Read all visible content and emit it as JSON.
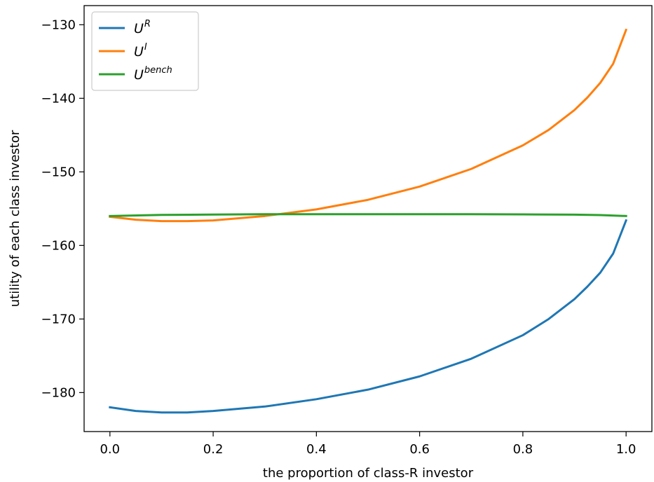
{
  "chart_data": {
    "type": "line",
    "xlabel": "the proportion of class-R investor",
    "ylabel": "utility of each class investor",
    "xlim": [
      -0.05,
      1.05
    ],
    "ylim": [
      -185.3,
      -127.4
    ],
    "x_ticks": [
      0.0,
      0.2,
      0.4,
      0.6,
      0.8,
      1.0
    ],
    "x_tick_labels": [
      "0.0",
      "0.2",
      "0.4",
      "0.6",
      "0.8",
      "1.0"
    ],
    "y_ticks": [
      -130,
      -140,
      -150,
      -160,
      -170,
      -180
    ],
    "y_tick_labels": [
      "−130",
      "−140",
      "−150",
      "−160",
      "−170",
      "−180"
    ],
    "grid": false,
    "legend_position": "top-left",
    "series": [
      {
        "name": "U^R",
        "legend_base": "U",
        "legend_sup": "R",
        "color": "#1f77b4",
        "x": [
          0.0,
          0.05,
          0.1,
          0.15,
          0.2,
          0.3,
          0.4,
          0.5,
          0.6,
          0.7,
          0.8,
          0.85,
          0.9,
          0.925,
          0.95,
          0.975,
          1.0
        ],
        "y": [
          -182.0,
          -182.5,
          -182.7,
          -182.7,
          -182.5,
          -181.9,
          -180.9,
          -179.6,
          -177.8,
          -175.4,
          -172.2,
          -170.0,
          -167.3,
          -165.6,
          -163.7,
          -161.1,
          -156.6
        ]
      },
      {
        "name": "U^I",
        "legend_base": "U",
        "legend_sup": "I",
        "color": "#ff7f0e",
        "x": [
          0.0,
          0.05,
          0.1,
          0.15,
          0.2,
          0.3,
          0.4,
          0.5,
          0.6,
          0.7,
          0.8,
          0.85,
          0.9,
          0.925,
          0.95,
          0.975,
          1.0
        ],
        "y": [
          -156.1,
          -156.5,
          -156.7,
          -156.7,
          -156.6,
          -156.0,
          -155.1,
          -153.8,
          -152.0,
          -149.6,
          -146.4,
          -144.3,
          -141.6,
          -139.9,
          -137.9,
          -135.3,
          -130.7
        ]
      },
      {
        "name": "U^bench",
        "legend_base": "U",
        "legend_sup": "bench",
        "color": "#2ca02c",
        "x": [
          0.0,
          0.1,
          0.2,
          0.3,
          0.4,
          0.5,
          0.6,
          0.7,
          0.8,
          0.9,
          0.95,
          1.0
        ],
        "y": [
          -156.0,
          -155.85,
          -155.8,
          -155.75,
          -155.75,
          -155.75,
          -155.75,
          -155.75,
          -155.78,
          -155.82,
          -155.88,
          -156.0
        ]
      }
    ]
  }
}
